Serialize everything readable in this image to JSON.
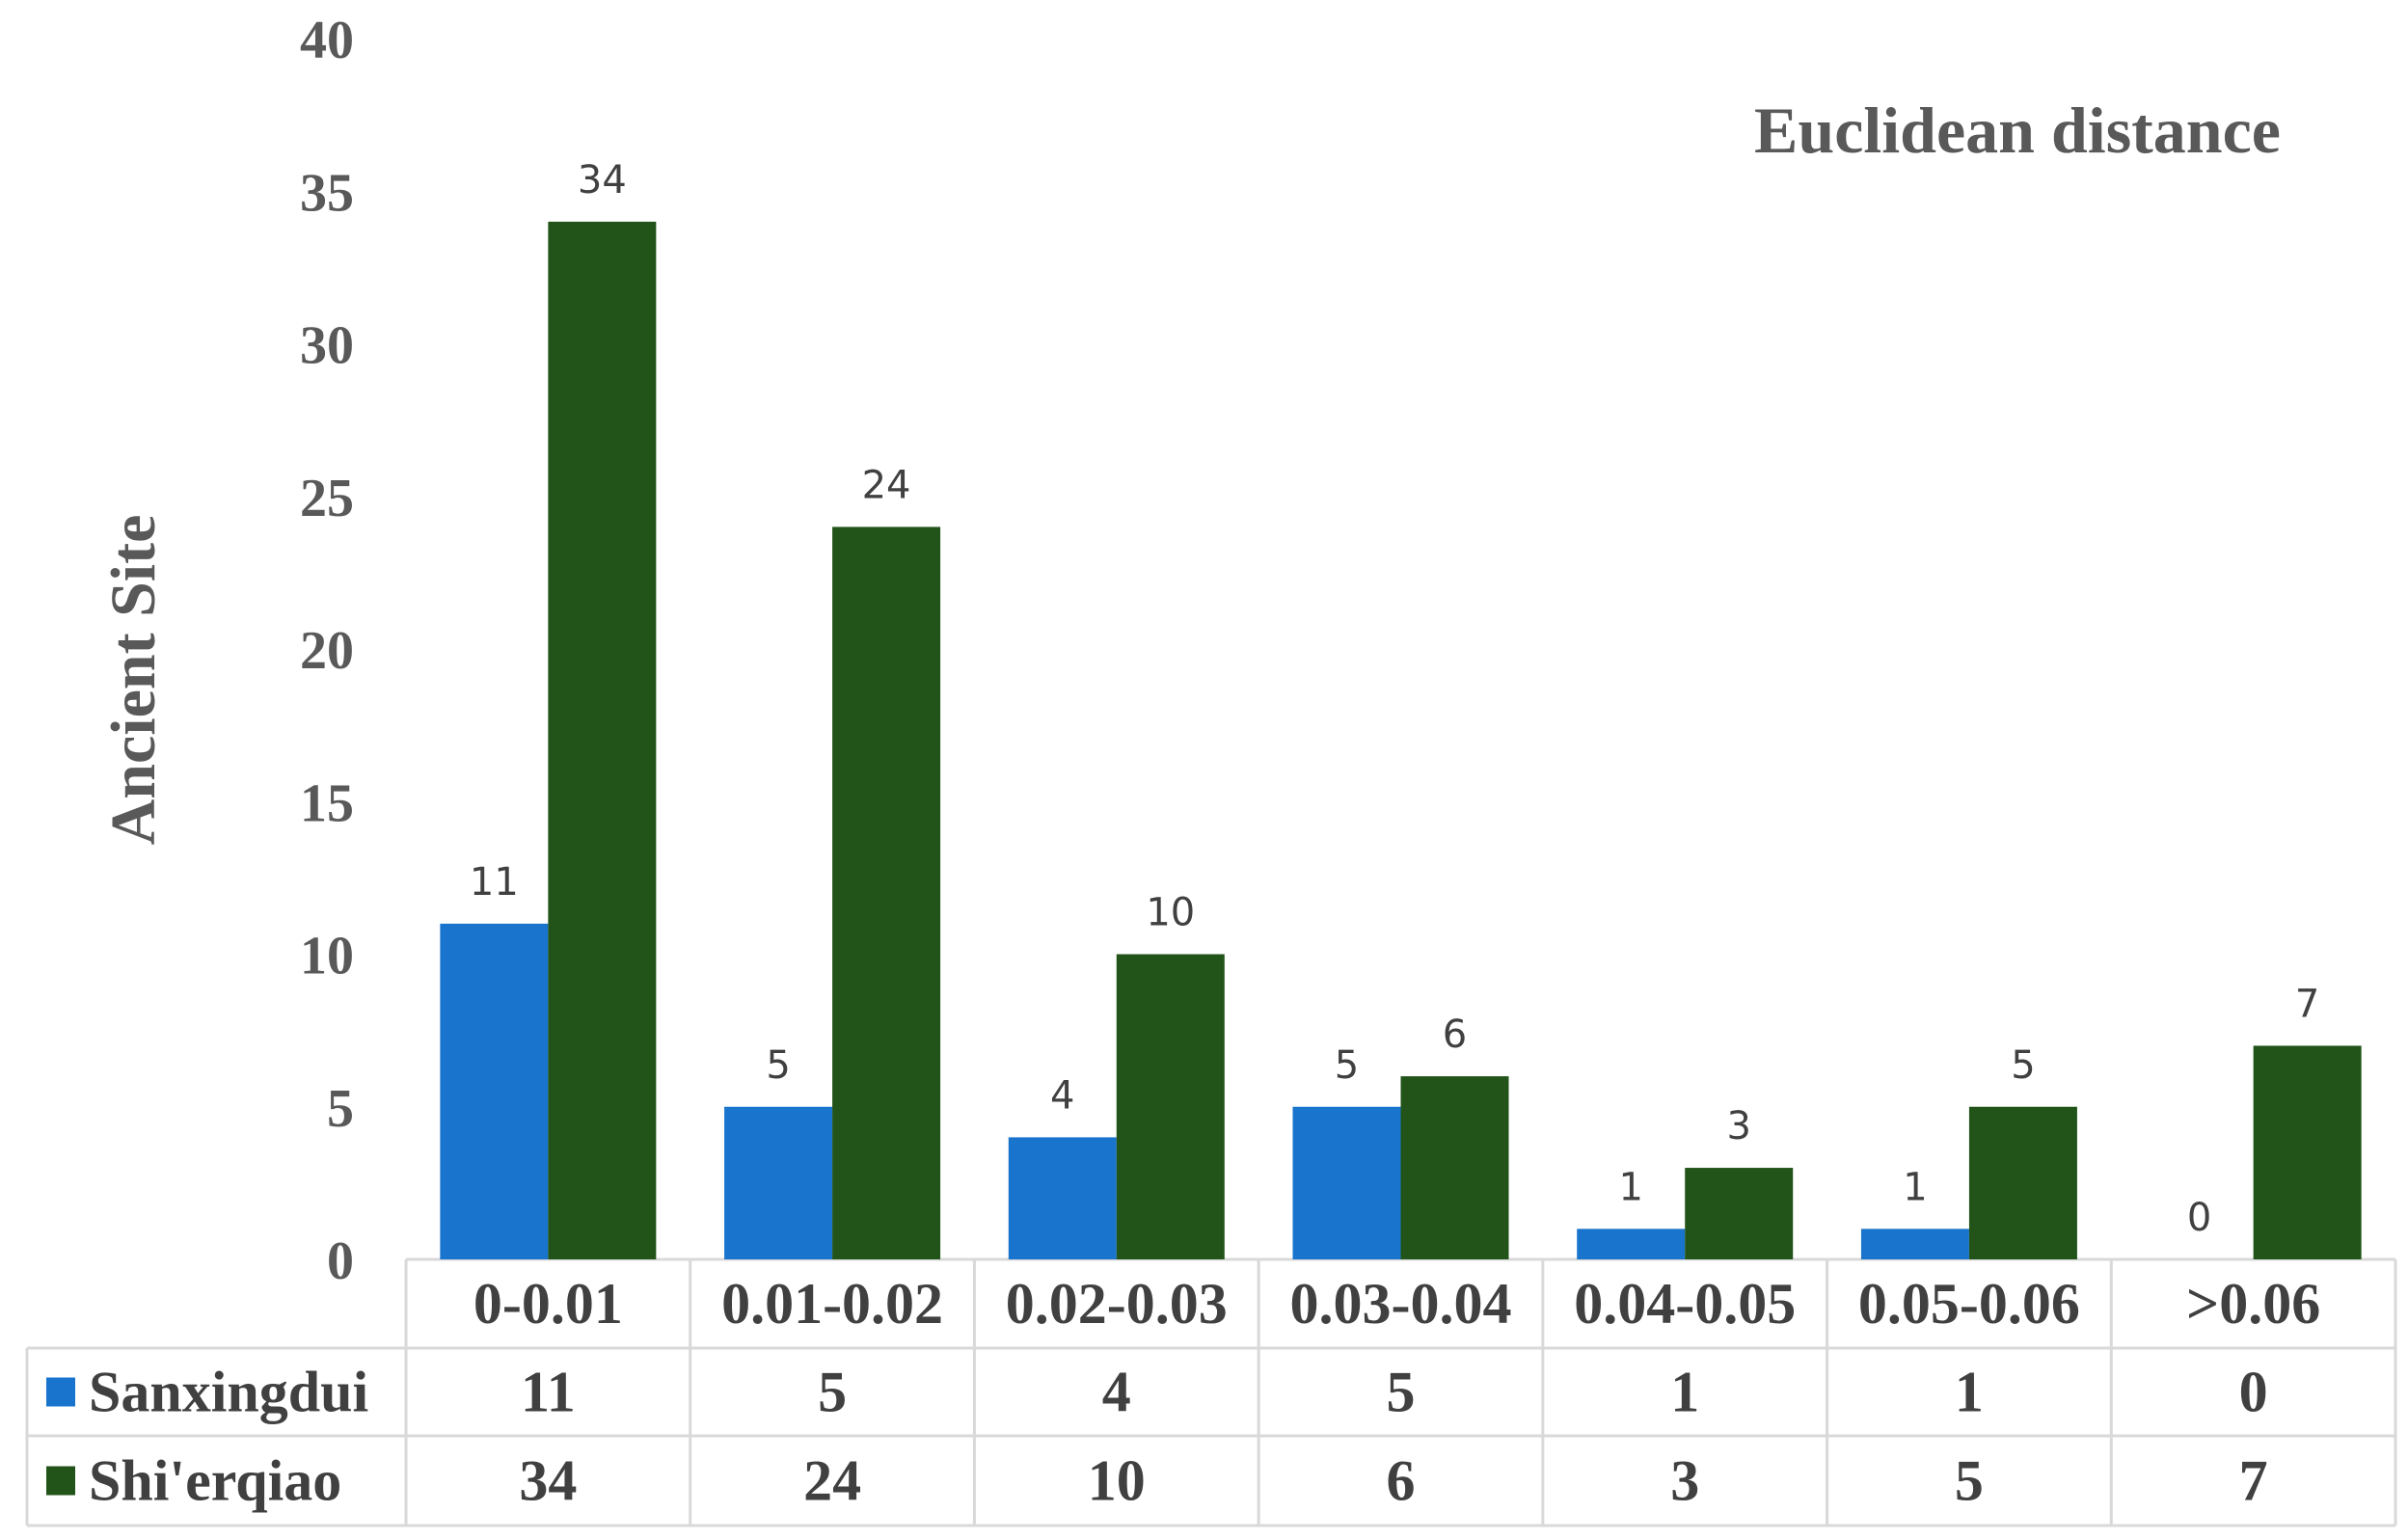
{
  "chart_data": {
    "type": "bar",
    "title": "Euclidean distance",
    "ylabel": "Ancient Site",
    "xlabel": "",
    "ylim": [
      0,
      40
    ],
    "yticks": [
      0,
      5,
      10,
      15,
      20,
      25,
      30,
      35,
      40
    ],
    "categories": [
      "0-0.01",
      "0.01-0.02",
      "0.02-0.03",
      "0.03-0.04",
      "0.04-0.05",
      "0.05-0.06",
      ">0.06"
    ],
    "series": [
      {
        "name": "Sanxingdui",
        "color": "#1874CD",
        "values": [
          11,
          5,
          4,
          5,
          1,
          1,
          0
        ]
      },
      {
        "name": "Shi'erqiao",
        "color": "#22541A",
        "values": [
          34,
          24,
          10,
          6,
          3,
          5,
          7
        ]
      }
    ],
    "data_labels": true,
    "data_table": true,
    "grid": false,
    "legend": "in data table"
  }
}
